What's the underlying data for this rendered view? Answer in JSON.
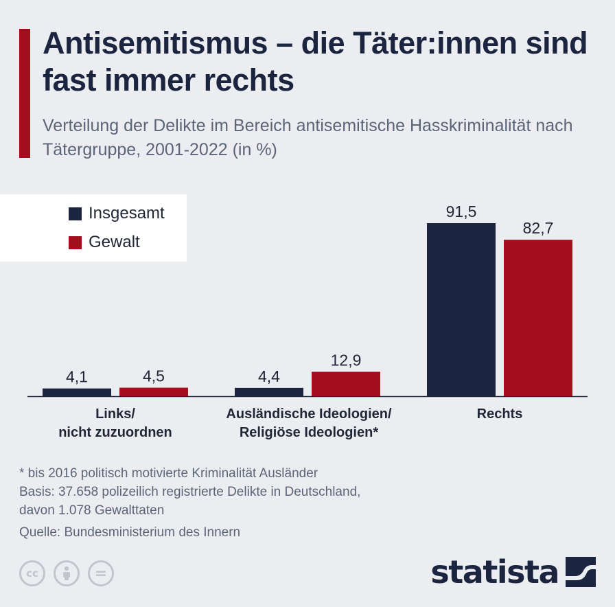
{
  "header": {
    "title": "Antisemitismus – die Täter:innen sind fast immer rechts",
    "subtitle": "Verteilung der Delikte im Bereich antisemitische Hasskriminalität nach Tätergruppe, 2001-2022 (in %)"
  },
  "colors": {
    "accent": "#a30d1c",
    "insgesamt": "#1b2540",
    "gewalt": "#a30d1c"
  },
  "chart_data": {
    "type": "bar",
    "title": "Antisemitismus – die Täter:innen sind fast immer rechts",
    "subtitle": "Verteilung der Delikte im Bereich antisemitische Hasskriminalität nach Tätergruppe, 2001-2022 (in %)",
    "categories": [
      "Links/\nnicht zuzuordnen",
      "Ausländische Ideologien/\nReligiöse Ideologien*",
      "Rechts"
    ],
    "series": [
      {
        "name": "Insgesamt",
        "values": [
          4.1,
          4.4,
          91.5
        ],
        "labels": [
          "4,1",
          "4,4",
          "91,5"
        ]
      },
      {
        "name": "Gewalt",
        "values": [
          4.5,
          12.9,
          82.7
        ],
        "labels": [
          "4,5",
          "12,9",
          "82,7"
        ]
      }
    ],
    "xlabel": "",
    "ylabel": "",
    "ylim": [
      0,
      91.5
    ],
    "legend": "top-left",
    "grid": false
  },
  "categories_display": [
    {
      "line1": "Links/",
      "line2": "nicht zuzuordnen"
    },
    {
      "line1": "Ausländische Ideologien/",
      "line2": "Religiöse Ideologien*"
    },
    {
      "line1": "Rechts",
      "line2": ""
    }
  ],
  "legend": {
    "insgesamt": "Insgesamt",
    "gewalt": "Gewalt"
  },
  "footer": {
    "footnote": "* bis 2016 politisch motivierte Kriminalität Ausländer",
    "basis_line1": "Basis: 37.658 polizeilich registrierte Delikte in Deutschland,",
    "basis_line2": "davon 1.078 Gewalttaten",
    "source": "Quelle: Bundesministerium des Innern",
    "cc_icons": [
      "cc-icon",
      "by-icon",
      "nd-icon"
    ],
    "cc_text": "cc",
    "nd_text": "=",
    "brand": "statista"
  }
}
